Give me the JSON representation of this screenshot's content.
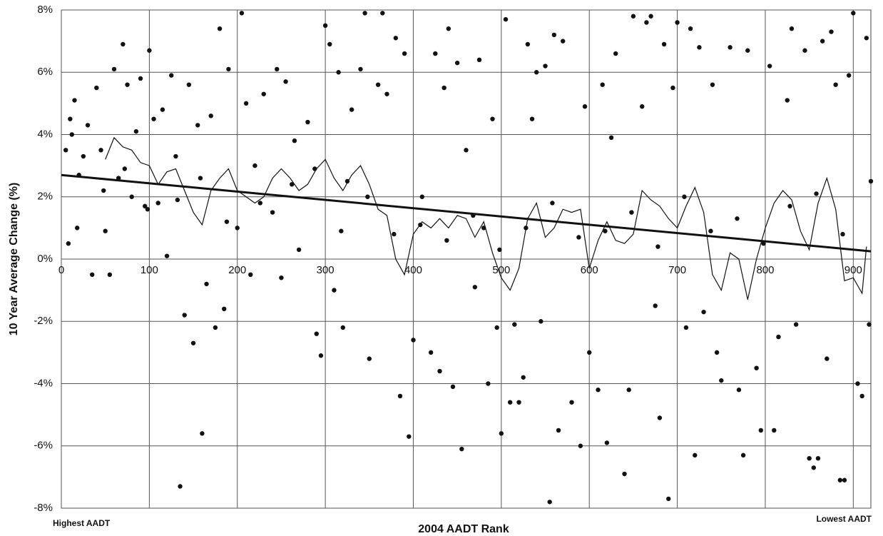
{
  "chart_data": {
    "type": "scatter",
    "x_label": "2004 AADT Rank",
    "y_label": "10 Year Average Change (%)",
    "annotations": [
      "Highest AADT",
      "Lowest AADT"
    ],
    "color": "#111111",
    "grid": true,
    "xlim": [
      0,
      920
    ],
    "ylim": [
      -8,
      8
    ],
    "xticks": [
      0,
      100,
      200,
      300,
      400,
      500,
      600,
      700,
      800,
      900
    ],
    "yticks": [
      {
        "value": -8,
        "label": "-8%"
      },
      {
        "value": -6,
        "label": "-6%"
      },
      {
        "value": -4,
        "label": "-4%"
      },
      {
        "value": -2,
        "label": "-2%"
      },
      {
        "value": 0,
        "label": "0%"
      },
      {
        "value": 2,
        "label": "2%"
      },
      {
        "value": 4,
        "label": "4%"
      },
      {
        "value": 6,
        "label": "6%"
      },
      {
        "value": 8,
        "label": "8%"
      }
    ],
    "x": [
      5,
      8,
      10,
      12,
      15,
      18,
      25,
      30,
      35,
      40,
      45,
      50,
      55,
      60,
      65,
      70,
      75,
      80,
      85,
      90,
      95,
      100,
      105,
      110,
      115,
      120,
      125,
      130,
      135,
      140,
      145,
      150,
      155,
      160,
      165,
      170,
      175,
      180,
      185,
      190,
      200,
      205,
      210,
      215,
      220,
      230,
      240,
      245,
      250,
      255,
      265,
      270,
      280,
      290,
      295,
      300,
      305,
      310,
      315,
      320,
      325,
      330,
      340,
      345,
      350,
      360,
      365,
      370,
      380,
      385,
      390,
      395,
      400,
      410,
      420,
      425,
      430,
      435,
      440,
      445,
      450,
      455,
      460,
      470,
      475,
      480,
      485,
      490,
      495,
      500,
      505,
      510,
      515,
      520,
      525,
      530,
      535,
      540,
      545,
      550,
      555,
      560,
      565,
      570,
      580,
      590,
      595,
      600,
      610,
      615,
      620,
      625,
      630,
      640,
      645,
      650,
      660,
      665,
      670,
      675,
      680,
      685,
      690,
      695,
      700,
      710,
      715,
      720,
      725,
      730,
      740,
      745,
      750,
      760,
      770,
      775,
      780,
      790,
      795,
      805,
      810,
      815,
      825,
      830,
      835,
      845,
      850,
      855,
      860,
      865,
      870,
      875,
      880,
      885,
      890,
      895,
      900,
      905,
      910,
      915,
      918,
      920,
      20,
      48,
      72,
      98,
      132,
      158,
      188,
      226,
      262,
      288,
      318,
      348,
      378,
      408,
      438,
      468,
      498,
      528,
      558,
      588,
      618,
      648,
      678,
      708,
      738,
      768,
      798,
      828,
      858,
      888
    ],
    "values": [
      3.5,
      0.5,
      4.5,
      4.0,
      5.1,
      1.0,
      3.3,
      4.3,
      -0.5,
      5.5,
      3.5,
      0.9,
      -0.5,
      6.1,
      2.6,
      6.9,
      5.6,
      2.0,
      4.1,
      5.8,
      1.7,
      6.7,
      4.5,
      1.8,
      4.8,
      0.1,
      5.9,
      3.3,
      -7.3,
      -1.8,
      5.6,
      -2.7,
      4.3,
      -5.6,
      -0.8,
      4.6,
      -2.2,
      7.4,
      -1.6,
      6.1,
      1.0,
      7.9,
      5.0,
      -0.5,
      3.0,
      5.3,
      1.5,
      6.1,
      -0.6,
      5.7,
      3.8,
      0.3,
      4.4,
      -2.4,
      -3.1,
      7.5,
      6.9,
      -1.0,
      6.0,
      -2.2,
      2.5,
      4.8,
      6.1,
      7.9,
      -3.2,
      5.6,
      7.9,
      5.3,
      7.1,
      -4.4,
      6.6,
      -5.7,
      -2.6,
      2.0,
      -3.0,
      6.6,
      -3.6,
      5.5,
      7.4,
      -4.1,
      6.3,
      -6.1,
      3.5,
      -0.9,
      6.4,
      1.0,
      -4.0,
      4.5,
      -2.2,
      -5.6,
      7.7,
      -4.6,
      -2.1,
      -4.6,
      -3.8,
      6.9,
      4.5,
      6.0,
      -2.0,
      6.2,
      -7.8,
      7.2,
      -5.5,
      7.0,
      -4.6,
      -6.0,
      4.9,
      -3.0,
      -4.2,
      5.6,
      -5.9,
      3.9,
      6.6,
      -6.9,
      -4.2,
      7.8,
      4.9,
      7.6,
      7.8,
      -1.5,
      -5.1,
      6.9,
      -7.7,
      5.5,
      7.6,
      -2.2,
      7.4,
      -6.3,
      6.8,
      -1.7,
      5.6,
      -3.0,
      -3.9,
      6.8,
      -4.2,
      -6.3,
      6.7,
      -3.5,
      -5.5,
      6.2,
      -5.5,
      -2.5,
      5.1,
      7.4,
      -2.1,
      6.7,
      -6.4,
      -6.7,
      -6.4,
      7.0,
      -3.2,
      7.3,
      5.6,
      -7.1,
      -7.1,
      5.9,
      7.9,
      -4.0,
      -4.4,
      7.1,
      -2.1,
      2.5,
      2.7,
      2.2,
      2.9,
      1.6,
      1.9,
      2.6,
      1.2,
      1.8,
      2.4,
      2.9,
      0.9,
      2.0,
      0.8,
      1.1,
      0.6,
      1.4,
      0.3,
      1.0,
      1.8,
      0.7,
      0.9,
      1.5,
      0.4,
      2.0,
      0.9,
      1.3,
      0.5,
      1.7,
      2.1,
      0.8
    ],
    "moving_average": {
      "x": [
        50,
        60,
        70,
        80,
        90,
        100,
        110,
        120,
        130,
        140,
        150,
        160,
        170,
        180,
        190,
        200,
        210,
        220,
        230,
        240,
        250,
        260,
        270,
        280,
        290,
        300,
        310,
        320,
        330,
        340,
        350,
        360,
        370,
        380,
        390,
        400,
        410,
        420,
        430,
        440,
        450,
        460,
        470,
        480,
        490,
        500,
        510,
        520,
        530,
        540,
        550,
        560,
        570,
        580,
        590,
        600,
        610,
        620,
        630,
        640,
        650,
        660,
        670,
        680,
        690,
        700,
        710,
        720,
        730,
        740,
        750,
        760,
        770,
        780,
        790,
        800,
        810,
        820,
        830,
        840,
        850,
        860,
        870,
        880,
        890,
        900,
        910,
        915
      ],
      "values": [
        3.2,
        3.9,
        3.6,
        3.5,
        3.1,
        3.0,
        2.4,
        2.8,
        2.9,
        2.2,
        1.5,
        1.1,
        2.2,
        2.6,
        2.9,
        2.2,
        2.0,
        1.8,
        2.0,
        2.6,
        2.9,
        2.6,
        2.2,
        2.4,
        2.9,
        3.2,
        2.6,
        2.2,
        2.7,
        3.0,
        2.4,
        1.6,
        1.4,
        0.0,
        -0.5,
        0.8,
        1.2,
        1.0,
        1.3,
        1.0,
        1.4,
        1.3,
        0.7,
        1.2,
        0.2,
        -0.6,
        -1.0,
        -0.3,
        1.3,
        1.8,
        0.7,
        1.0,
        1.6,
        1.5,
        1.6,
        -0.3,
        0.6,
        1.2,
        0.6,
        0.5,
        0.8,
        2.2,
        1.9,
        1.7,
        1.3,
        1.0,
        1.7,
        2.3,
        1.5,
        -0.5,
        -1.0,
        0.2,
        0.0,
        -1.3,
        0.0,
        1.0,
        1.8,
        2.2,
        1.9,
        0.9,
        0.3,
        1.8,
        2.6,
        1.6,
        -0.7,
        -0.6,
        -1.1,
        0.4
      ]
    },
    "trend": {
      "x": [
        0,
        920
      ],
      "values": [
        2.7,
        0.25
      ]
    }
  }
}
